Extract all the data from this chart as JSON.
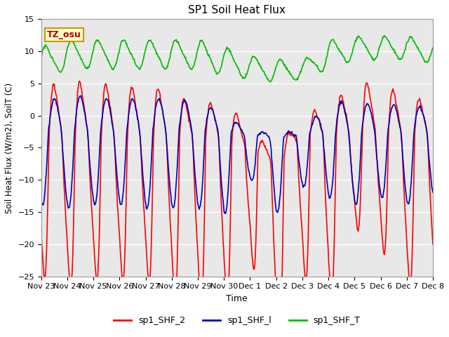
{
  "title": "SP1 Soil Heat Flux",
  "xlabel": "Time",
  "ylabel": "Soil Heat Flux (W/m2), SoilT (C)",
  "ylim": [
    -25,
    15
  ],
  "yticks": [
    -25,
    -20,
    -15,
    -10,
    -5,
    0,
    5,
    10,
    15
  ],
  "xtick_labels": [
    "Nov 23",
    "Nov 24",
    "Nov 25",
    "Nov 26",
    "Nov 27",
    "Nov 28",
    "Nov 29",
    "Nov 30",
    "Dec 1",
    "Dec 2",
    "Dec 3",
    "Dec 4",
    "Dec 5",
    "Dec 6",
    "Dec 7",
    "Dec 8"
  ],
  "n_days": 15,
  "bg_color": "#e8e8e8",
  "grid_color": "#ffffff",
  "line_colors": {
    "sp1_SHF_2": "#ff0000",
    "sp1_SHF_1": "#0000bb",
    "sp1_SHF_T": "#00bb00"
  },
  "legend_labels": [
    "sp1_SHF_2",
    "sp1_SHF_l",
    "sp1_SHF_T"
  ],
  "annotation_text": "TZ_osu",
  "annotation_color": "#aa0000",
  "annotation_bg": "#ffffcc",
  "annotation_border": "#cc9900",
  "linewidth": 1.2,
  "title_fontsize": 11,
  "label_fontsize": 9,
  "tick_fontsize": 8,
  "legend_fontsize": 9
}
